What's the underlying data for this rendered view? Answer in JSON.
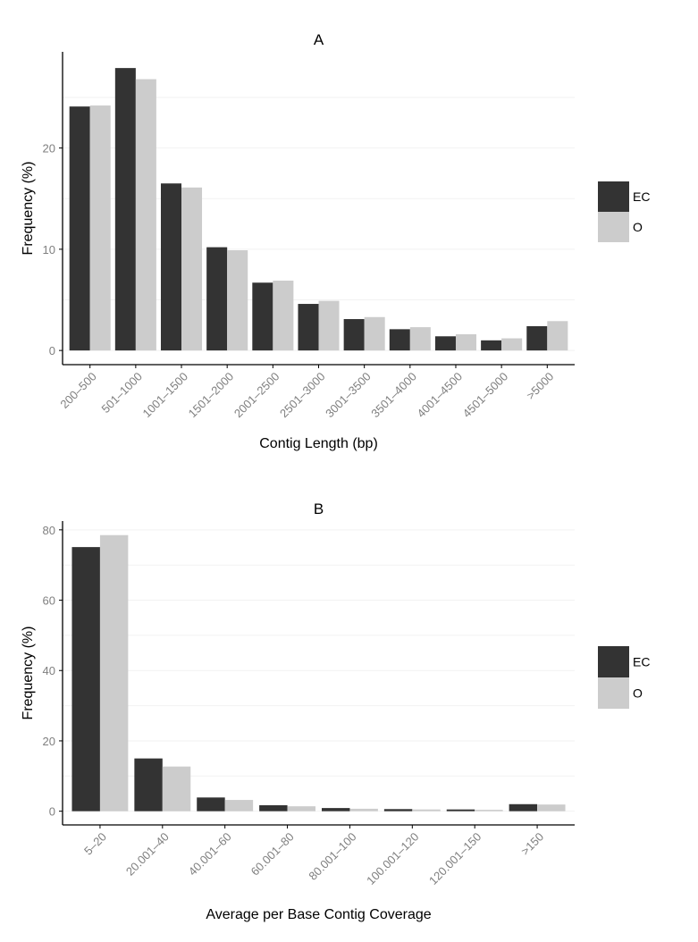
{
  "chart_data": [
    {
      "type": "bar",
      "title": "A",
      "xlabel": "Contig Length (bp)",
      "ylabel": "Frequency (%)",
      "categories": [
        "200–500",
        "501–1000",
        "1001–1500",
        "1501–2000",
        "2001–2500",
        "2501–3000",
        "3001–3500",
        "3501–4000",
        "4001–4500",
        "4501–5000",
        ">5000"
      ],
      "series": [
        {
          "name": "EC",
          "color": "#333333",
          "values": [
            24.1,
            27.9,
            16.5,
            10.2,
            6.7,
            4.6,
            3.1,
            2.1,
            1.4,
            1.0,
            2.4
          ]
        },
        {
          "name": "O",
          "color": "#cccccc",
          "values": [
            24.2,
            26.8,
            16.1,
            9.9,
            6.9,
            4.9,
            3.3,
            2.3,
            1.6,
            1.2,
            2.9
          ]
        }
      ],
      "ylim": [
        -1.4,
        29.5
      ],
      "yticks": [
        0,
        10,
        20
      ],
      "grid": "horizontal, faint",
      "legend": "right"
    },
    {
      "type": "bar",
      "title": "B",
      "xlabel": "Average per Base Contig Coverage",
      "ylabel": "Frequency (%)",
      "categories": [
        "5–20",
        "20.001–40",
        "40.001–60",
        "60.001–80",
        "80.001–100",
        "100.001–120",
        "120.001–150",
        ">150"
      ],
      "series": [
        {
          "name": "EC",
          "color": "#333333",
          "values": [
            75.1,
            15.0,
            3.9,
            1.7,
            0.9,
            0.6,
            0.5,
            2.0
          ]
        },
        {
          "name": "O",
          "color": "#cccccc",
          "values": [
            78.5,
            12.7,
            3.2,
            1.4,
            0.7,
            0.5,
            0.4,
            1.9
          ]
        }
      ],
      "ylim": [
        -3.9,
        82.5
      ],
      "yticks": [
        0,
        20,
        40,
        60,
        80
      ],
      "grid": "horizontal, faint",
      "legend": "right"
    }
  ]
}
